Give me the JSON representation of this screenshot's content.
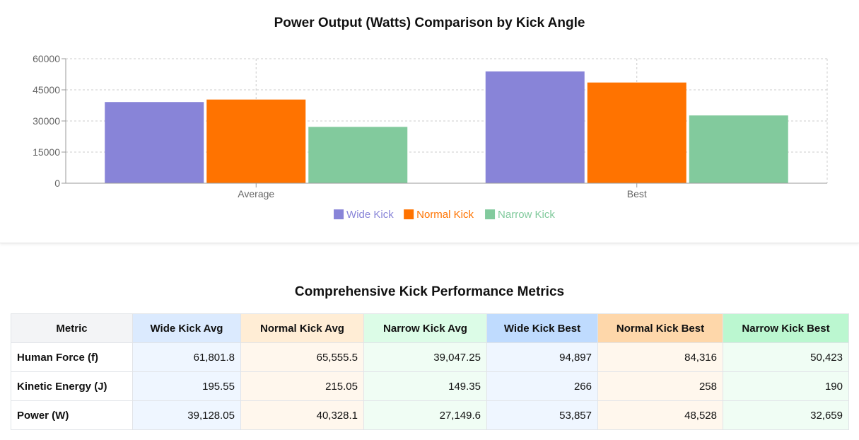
{
  "chart_data": {
    "type": "bar",
    "title": "Power Output (Watts) Comparison by Kick Angle",
    "categories": [
      "Average",
      "Best"
    ],
    "series": [
      {
        "name": "Wide Kick",
        "values": [
          39128.05,
          53857
        ],
        "color": "#8884d8"
      },
      {
        "name": "Normal Kick",
        "values": [
          40328.1,
          48528
        ],
        "color": "#ff7300"
      },
      {
        "name": "Narrow Kick",
        "values": [
          27149.6,
          32659
        ],
        "color": "#82ca9d"
      }
    ],
    "ylim": [
      0,
      60000
    ],
    "yticks": [
      "0",
      "15000",
      "30000",
      "45000",
      "60000"
    ],
    "grid": true,
    "legend": "bottom-center"
  },
  "table": {
    "title": "Comprehensive Kick Performance Metrics",
    "headers": [
      "Metric",
      "Wide Kick Avg",
      "Normal Kick Avg",
      "Narrow Kick Avg",
      "Wide Kick Best",
      "Normal Kick Best",
      "Narrow Kick Best"
    ],
    "rows": [
      {
        "metric": "Human Force (f)",
        "values": [
          "61,801.8",
          "65,555.5",
          "39,047.25",
          "94,897",
          "84,316",
          "50,423"
        ]
      },
      {
        "metric": "Kinetic Energy (J)",
        "values": [
          "195.55",
          "215.05",
          "149.35",
          "266",
          "258",
          "190"
        ]
      },
      {
        "metric": "Power (W)",
        "values": [
          "39,128.05",
          "40,328.1",
          "27,149.6",
          "53,857",
          "48,528",
          "32,659"
        ]
      }
    ]
  }
}
